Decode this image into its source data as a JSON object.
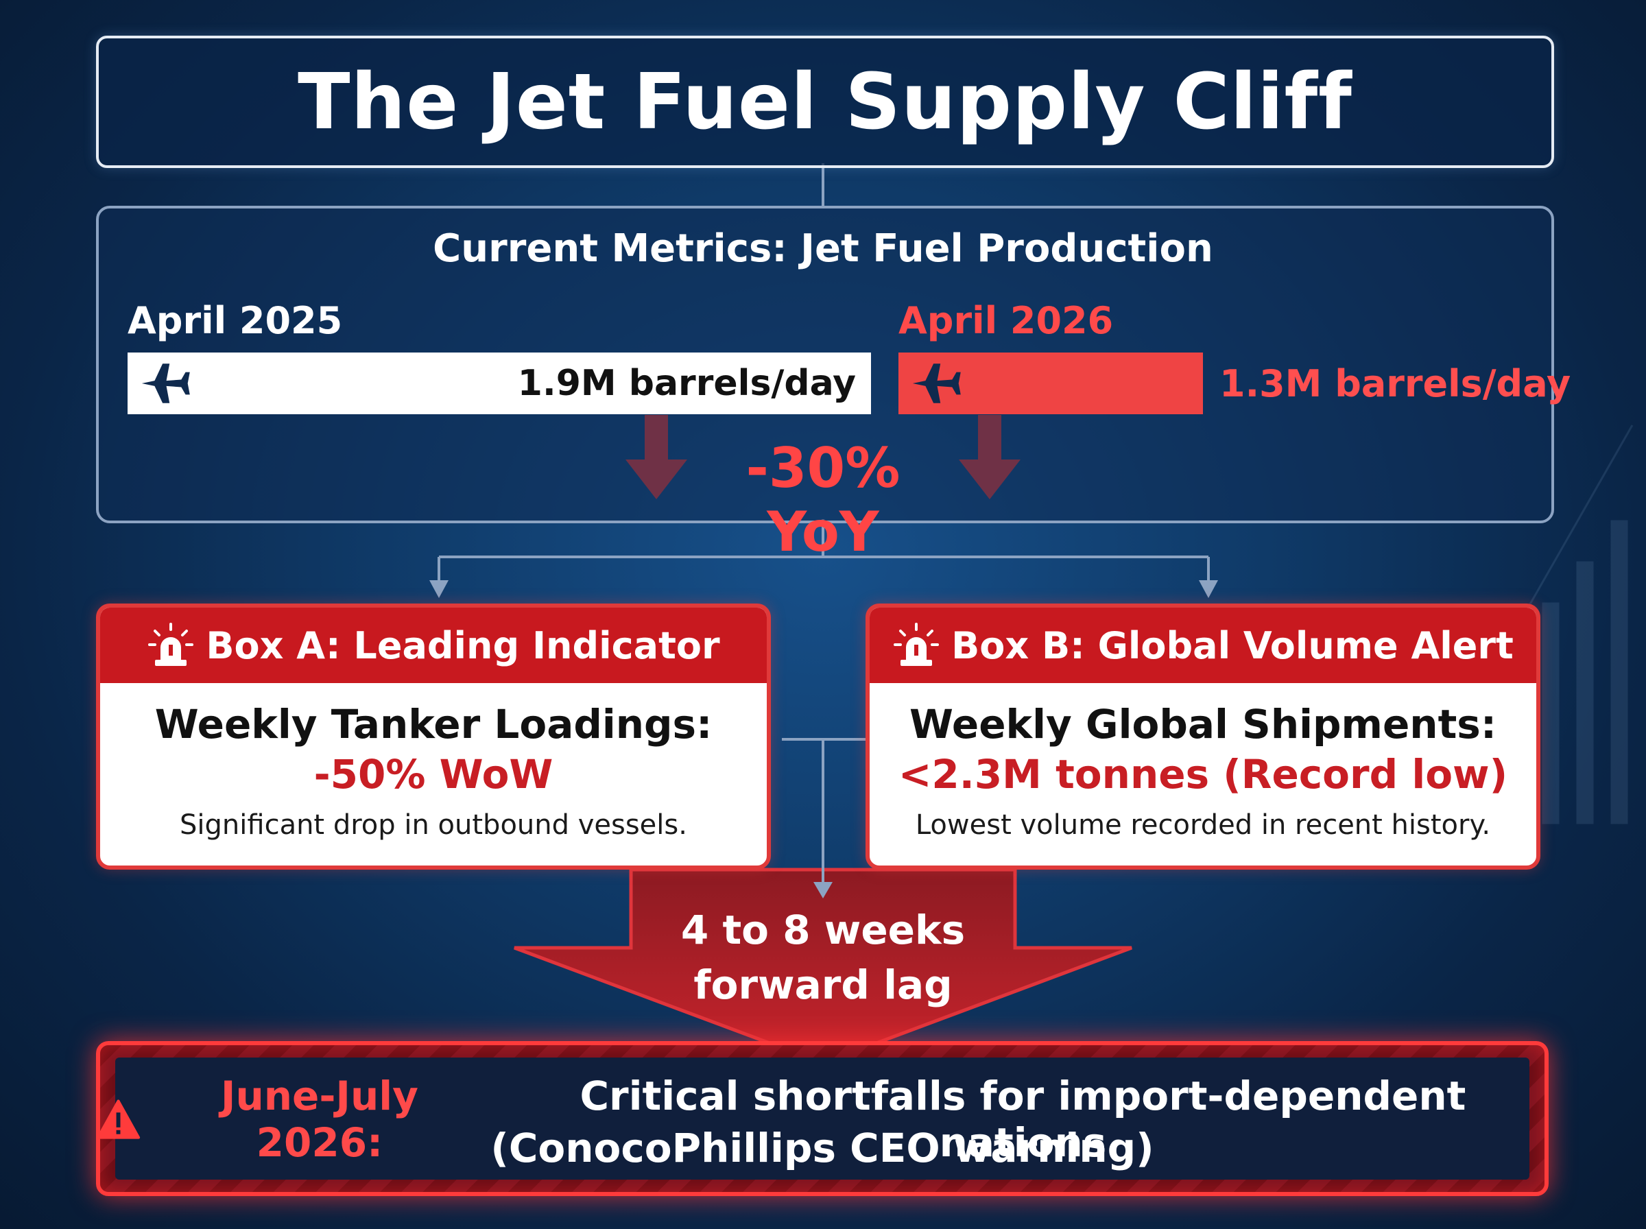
{
  "title": "The Jet Fuel Supply Cliff",
  "metrics": {
    "title": "Current Metrics: Jet Fuel Production",
    "period_a": {
      "label": "April 2025",
      "value": "1.9M barrels/day",
      "barrels_per_day_millions": 1.9
    },
    "period_b": {
      "label": "April 2026",
      "value": "1.3M barrels/day",
      "barrels_per_day_millions": 1.3
    },
    "change": "-30% YoY"
  },
  "box_a": {
    "header": "Box A: Leading Indicator",
    "metric": "Weekly Tanker Loadings:",
    "value": "-50% WoW",
    "note": "Significant drop in outbound vessels."
  },
  "box_b": {
    "header": "Box B: Global Volume Alert",
    "metric": "Weekly Global Shipments:",
    "value": "<2.3M tonnes (Record low)",
    "note": "Lowest volume recorded in recent history."
  },
  "lag": {
    "line1": "4 to 8 weeks",
    "line2": "forward lag"
  },
  "warning": {
    "date": "June-July 2026:",
    "line1": "Critical shortfalls for import-dependent nations",
    "line2": "(ConocoPhillips CEO warning)"
  },
  "colors": {
    "accent_red": "#ef4444",
    "header_red": "#c8191f",
    "background_navy": "#0f3a68"
  },
  "icons": [
    "airplane-icon",
    "siren-icon",
    "warning-triangle-icon"
  ]
}
